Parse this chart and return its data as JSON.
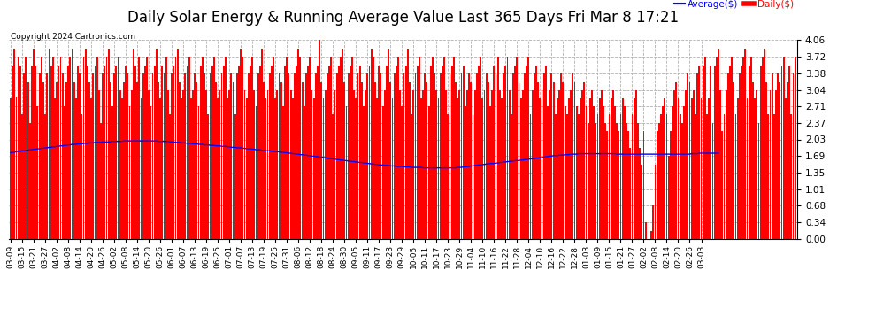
{
  "title": "Daily Solar Energy & Running Average Value Last 365 Days Fri Mar 8 17:21",
  "copyright": "Copyright 2024 Cartronics.com",
  "legend_avg": "Average($)",
  "legend_daily": "Daily($)",
  "bar_color": "#ff0000",
  "avg_color": "#0000ff",
  "background_color": "#ffffff",
  "grid_color": "#b0b0b0",
  "ylim": [
    0.0,
    4.06
  ],
  "yticks": [
    0.0,
    0.34,
    0.68,
    1.01,
    1.35,
    1.69,
    2.03,
    2.37,
    2.71,
    3.04,
    3.38,
    3.72,
    4.06
  ],
  "title_fontsize": 12,
  "tick_fontsize": 7.5,
  "copyright_fontsize": 6.5,
  "x_labels": [
    "03-09",
    "03-15",
    "03-21",
    "03-27",
    "04-02",
    "04-08",
    "04-14",
    "04-20",
    "04-26",
    "05-02",
    "05-08",
    "05-14",
    "05-20",
    "05-26",
    "06-01",
    "06-07",
    "06-13",
    "06-19",
    "06-25",
    "07-01",
    "07-07",
    "07-13",
    "07-19",
    "07-25",
    "07-31",
    "08-06",
    "08-12",
    "08-18",
    "08-24",
    "08-30",
    "09-05",
    "09-11",
    "09-17",
    "09-23",
    "09-29",
    "10-05",
    "10-11",
    "10-17",
    "10-23",
    "10-29",
    "11-04",
    "11-10",
    "11-16",
    "11-22",
    "11-28",
    "12-04",
    "12-10",
    "12-16",
    "12-22",
    "12-28",
    "01-03",
    "01-09",
    "01-15",
    "01-21",
    "01-27",
    "02-02",
    "02-08",
    "02-14",
    "02-20",
    "02-26",
    "03-03"
  ],
  "label_step": 6,
  "daily_values": [
    2.87,
    3.54,
    3.88,
    2.91,
    3.72,
    3.54,
    2.54,
    3.38,
    3.72,
    3.2,
    2.37,
    3.54,
    3.88,
    3.54,
    2.71,
    3.38,
    3.72,
    3.2,
    2.54,
    3.38,
    3.88,
    3.54,
    3.72,
    2.87,
    3.2,
    3.54,
    3.72,
    3.38,
    2.71,
    3.2,
    3.54,
    3.72,
    3.88,
    3.2,
    2.87,
    3.54,
    3.38,
    2.54,
    3.72,
    3.88,
    3.54,
    3.2,
    2.87,
    3.38,
    3.54,
    3.72,
    3.04,
    2.37,
    3.38,
    3.54,
    3.72,
    3.88,
    3.2,
    2.71,
    3.38,
    3.54,
    3.72,
    3.04,
    2.87,
    3.2,
    3.54,
    3.38,
    2.71,
    3.04,
    3.88,
    3.54,
    3.2,
    3.72,
    2.87,
    3.38,
    3.54,
    3.72,
    3.04,
    2.71,
    3.38,
    3.54,
    3.88,
    3.2,
    2.87,
    3.54,
    3.38,
    3.72,
    3.04,
    2.54,
    3.38,
    3.54,
    3.72,
    3.88,
    3.2,
    2.87,
    3.04,
    3.38,
    3.54,
    3.72,
    2.87,
    3.04,
    3.38,
    3.2,
    2.71,
    3.54,
    3.72,
    3.38,
    3.04,
    2.54,
    3.38,
    3.54,
    3.72,
    3.2,
    2.87,
    3.04,
    3.38,
    3.54,
    3.72,
    2.87,
    3.04,
    3.38,
    3.2,
    2.54,
    3.38,
    3.54,
    3.88,
    3.72,
    3.04,
    2.87,
    3.38,
    3.54,
    3.72,
    3.04,
    2.71,
    3.38,
    3.54,
    3.88,
    3.2,
    2.87,
    3.04,
    3.38,
    3.54,
    3.72,
    2.87,
    3.04,
    3.38,
    3.2,
    2.71,
    3.54,
    3.72,
    3.38,
    3.04,
    2.87,
    3.38,
    3.54,
    3.88,
    3.72,
    3.2,
    2.71,
    3.38,
    3.54,
    3.72,
    3.04,
    2.87,
    3.38,
    3.54,
    4.06,
    3.2,
    2.87,
    3.04,
    3.38,
    3.54,
    3.72,
    2.54,
    3.04,
    3.38,
    3.54,
    3.72,
    3.88,
    3.2,
    2.71,
    3.38,
    3.54,
    3.72,
    3.04,
    2.87,
    3.38,
    3.54,
    3.2,
    2.71,
    3.04,
    3.38,
    3.54,
    3.88,
    3.72,
    3.2,
    2.87,
    3.54,
    3.38,
    2.71,
    3.04,
    3.54,
    3.88,
    3.2,
    2.87,
    3.38,
    3.54,
    3.72,
    3.04,
    2.71,
    3.38,
    3.54,
    3.88,
    3.2,
    2.54,
    3.04,
    3.38,
    3.54,
    3.72,
    2.87,
    3.04,
    3.38,
    3.2,
    2.71,
    3.54,
    3.72,
    3.38,
    3.04,
    2.87,
    3.38,
    3.54,
    3.72,
    3.04,
    2.54,
    3.38,
    3.54,
    3.72,
    3.2,
    2.87,
    3.04,
    3.38,
    3.54,
    2.71,
    3.04,
    3.38,
    3.2,
    2.54,
    3.04,
    3.38,
    3.54,
    3.72,
    2.87,
    3.04,
    3.38,
    3.2,
    2.71,
    3.04,
    3.54,
    3.38,
    3.72,
    3.04,
    2.87,
    3.38,
    3.54,
    3.72,
    3.04,
    2.54,
    3.38,
    3.54,
    3.72,
    3.2,
    2.87,
    3.04,
    3.38,
    3.54,
    3.72,
    2.54,
    3.04,
    3.38,
    3.54,
    3.2,
    2.87,
    3.04,
    3.38,
    3.54,
    2.71,
    3.04,
    3.38,
    3.2,
    2.54,
    2.87,
    3.04,
    3.38,
    3.2,
    2.71,
    2.54,
    2.87,
    3.04,
    3.38,
    3.2,
    2.71,
    2.54,
    2.87,
    3.04,
    3.2,
    2.71,
    2.37,
    2.87,
    3.04,
    2.71,
    2.37,
    2.54,
    2.87,
    3.04,
    2.71,
    2.37,
    2.2,
    2.54,
    2.87,
    3.04,
    2.71,
    2.37,
    2.2,
    2.54,
    2.87,
    2.71,
    2.37,
    2.2,
    1.85,
    2.54,
    2.87,
    3.04,
    2.37,
    1.85,
    1.52,
    2.2,
    0.34,
    0.0,
    0.0,
    0.17,
    0.68,
    1.52,
    2.2,
    2.37,
    2.54,
    2.71,
    2.87,
    2.54,
    1.69,
    2.2,
    2.71,
    3.04,
    3.2,
    2.87,
    2.54,
    2.37,
    2.71,
    3.04,
    3.38,
    3.2,
    2.87,
    3.04,
    2.54,
    3.38,
    3.54,
    2.87,
    3.54,
    3.72,
    2.54,
    2.87,
    3.54,
    2.37,
    3.54,
    3.72,
    3.88,
    3.04,
    2.2,
    2.54,
    3.04,
    3.38,
    3.54,
    3.72,
    3.2,
    2.54,
    2.87,
    3.38,
    3.54,
    3.72,
    3.88,
    2.87,
    3.54,
    3.72,
    3.2,
    2.87,
    3.04,
    2.37,
    3.54,
    3.72,
    3.88,
    3.2,
    2.54,
    3.04,
    3.38,
    2.54,
    3.04,
    3.38,
    3.2,
    3.54,
    3.72,
    2.87,
    3.2,
    3.54,
    2.54,
    3.38,
    3.72
  ],
  "avg_values": [
    1.76,
    1.77,
    1.77,
    1.78,
    1.79,
    1.79,
    1.8,
    1.8,
    1.81,
    1.81,
    1.82,
    1.82,
    1.83,
    1.83,
    1.84,
    1.84,
    1.85,
    1.85,
    1.86,
    1.86,
    1.87,
    1.87,
    1.88,
    1.88,
    1.89,
    1.89,
    1.9,
    1.9,
    1.91,
    1.91,
    1.92,
    1.92,
    1.93,
    1.93,
    1.93,
    1.94,
    1.94,
    1.94,
    1.95,
    1.95,
    1.95,
    1.96,
    1.96,
    1.96,
    1.97,
    1.97,
    1.97,
    1.97,
    1.98,
    1.98,
    1.98,
    1.98,
    1.98,
    1.99,
    1.99,
    1.99,
    1.99,
    1.99,
    1.99,
    2.0,
    2.0,
    2.0,
    2.0,
    2.0,
    2.0,
    2.0,
    2.0,
    2.0,
    2.0,
    2.0,
    2.0,
    2.0,
    2.0,
    2.0,
    2.0,
    2.0,
    2.0,
    1.99,
    1.99,
    1.99,
    1.99,
    1.99,
    1.99,
    1.98,
    1.98,
    1.98,
    1.97,
    1.97,
    1.97,
    1.96,
    1.96,
    1.96,
    1.95,
    1.95,
    1.95,
    1.94,
    1.94,
    1.94,
    1.93,
    1.93,
    1.93,
    1.92,
    1.92,
    1.92,
    1.91,
    1.91,
    1.91,
    1.9,
    1.9,
    1.9,
    1.89,
    1.89,
    1.89,
    1.88,
    1.88,
    1.87,
    1.87,
    1.87,
    1.86,
    1.86,
    1.86,
    1.85,
    1.85,
    1.84,
    1.84,
    1.84,
    1.83,
    1.83,
    1.82,
    1.82,
    1.82,
    1.81,
    1.81,
    1.8,
    1.8,
    1.8,
    1.79,
    1.79,
    1.78,
    1.78,
    1.78,
    1.77,
    1.77,
    1.76,
    1.76,
    1.75,
    1.75,
    1.74,
    1.74,
    1.73,
    1.73,
    1.72,
    1.72,
    1.71,
    1.71,
    1.7,
    1.7,
    1.69,
    1.69,
    1.68,
    1.68,
    1.67,
    1.67,
    1.66,
    1.66,
    1.65,
    1.64,
    1.64,
    1.63,
    1.63,
    1.62,
    1.62,
    1.61,
    1.61,
    1.6,
    1.6,
    1.59,
    1.59,
    1.58,
    1.58,
    1.57,
    1.57,
    1.56,
    1.56,
    1.55,
    1.55,
    1.54,
    1.54,
    1.53,
    1.53,
    1.52,
    1.52,
    1.51,
    1.51,
    1.51,
    1.5,
    1.5,
    1.5,
    1.49,
    1.49,
    1.49,
    1.48,
    1.48,
    1.48,
    1.48,
    1.47,
    1.47,
    1.47,
    1.47,
    1.46,
    1.46,
    1.46,
    1.46,
    1.46,
    1.46,
    1.45,
    1.45,
    1.45,
    1.45,
    1.45,
    1.45,
    1.45,
    1.45,
    1.45,
    1.45,
    1.45,
    1.45,
    1.45,
    1.45,
    1.45,
    1.45,
    1.45,
    1.45,
    1.46,
    1.46,
    1.46,
    1.47,
    1.47,
    1.48,
    1.48,
    1.49,
    1.49,
    1.5,
    1.5,
    1.51,
    1.51,
    1.52,
    1.52,
    1.53,
    1.53,
    1.54,
    1.54,
    1.54,
    1.55,
    1.55,
    1.56,
    1.56,
    1.57,
    1.57,
    1.58,
    1.58,
    1.59,
    1.59,
    1.6,
    1.6,
    1.6,
    1.61,
    1.61,
    1.62,
    1.62,
    1.63,
    1.63,
    1.64,
    1.64,
    1.65,
    1.65,
    1.66,
    1.66,
    1.67,
    1.68,
    1.68,
    1.69,
    1.69,
    1.7,
    1.7,
    1.7,
    1.71,
    1.71,
    1.71,
    1.72,
    1.72,
    1.72,
    1.73,
    1.73,
    1.73,
    1.73,
    1.74,
    1.74,
    1.74,
    1.74,
    1.74,
    1.74,
    1.74,
    1.74,
    1.74,
    1.74,
    1.74,
    1.74,
    1.74,
    1.74,
    1.74,
    1.74,
    1.74,
    1.74,
    1.74,
    1.74,
    1.73,
    1.73,
    1.73,
    1.73,
    1.73,
    1.73,
    1.73,
    1.73,
    1.73,
    1.73,
    1.73,
    1.73,
    1.73,
    1.73,
    1.73,
    1.73,
    1.73,
    1.73,
    1.73,
    1.73,
    1.73,
    1.73,
    1.73,
    1.73,
    1.73,
    1.73,
    1.73,
    1.73,
    1.73,
    1.73,
    1.73,
    1.73,
    1.73,
    1.73,
    1.73,
    1.73,
    1.73,
    1.73,
    1.73,
    1.74,
    1.74,
    1.74,
    1.74,
    1.75,
    1.75,
    1.75,
    1.75,
    1.75,
    1.75,
    1.75,
    1.75,
    1.75,
    1.75,
    1.75
  ]
}
